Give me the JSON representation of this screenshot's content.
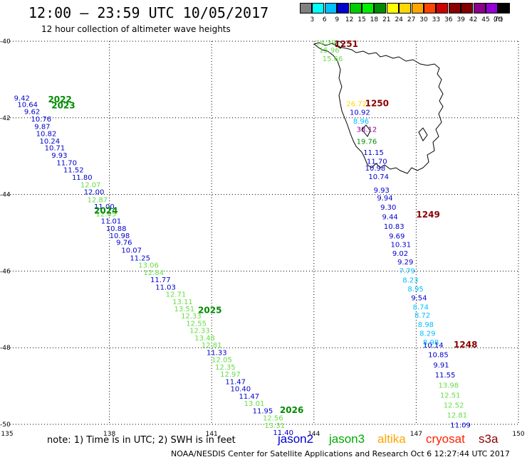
{
  "title": "12:00  —  23:59 UTC 10/05/2017",
  "subtitle": "12 hour collection of altimeter wave heights",
  "colorbar": {
    "colors": [
      "#808080",
      "#00ffff",
      "#00bfff",
      "#0000cd",
      "#00cd00",
      "#00ee00",
      "#008b00",
      "#ffff00",
      "#ffd700",
      "#ffa500",
      "#ff4500",
      "#cd0000",
      "#8b0000",
      "#800000",
      "#8b008b",
      "#9400d3",
      "#000000"
    ],
    "labels": [
      "3",
      "6",
      "9",
      "12",
      "15",
      "18",
      "21",
      "24",
      "27",
      "30",
      "33",
      "36",
      "39",
      "42",
      "45",
      "70"
    ],
    "unit": "(ft)"
  },
  "chart_data": {
    "type": "scatter",
    "xlim": [
      135,
      150
    ],
    "ylim": [
      -50,
      -40
    ],
    "x_ticks": [
      "135",
      "138",
      "141",
      "144",
      "147",
      "150"
    ],
    "y_ticks": [
      "-40",
      "-42",
      "-44",
      "-46",
      "-48",
      "-50"
    ],
    "grid": true,
    "pass_labels": [
      {
        "text": "2022",
        "lon": 136.2,
        "lat": -41.6,
        "color": "#008b00"
      },
      {
        "text": "2023",
        "lon": 136.3,
        "lat": -41.75,
        "color": "#008b00"
      },
      {
        "text": "2024",
        "lon": 137.55,
        "lat": -44.5,
        "color": "#008b00"
      },
      {
        "text": "2025",
        "lon": 140.6,
        "lat": -47.1,
        "color": "#008b00"
      },
      {
        "text": "2026",
        "lon": 143.0,
        "lat": -49.7,
        "color": "#008b00"
      },
      {
        "text": "1251",
        "lon": 144.6,
        "lat": -40.15,
        "color": "#8b0000"
      },
      {
        "text": "1250",
        "lon": 145.5,
        "lat": -41.7,
        "color": "#8b0000"
      },
      {
        "text": "1249",
        "lon": 147.0,
        "lat": -44.6,
        "color": "#8b0000"
      },
      {
        "text": "1248",
        "lon": 148.1,
        "lat": -48.0,
        "color": "#8b0000"
      }
    ],
    "observations": [
      {
        "v": "9.42",
        "lon": 135.2,
        "lat": -41.55,
        "color": "#0000cd"
      },
      {
        "v": "10.64",
        "lon": 135.3,
        "lat": -41.72,
        "color": "#0000cd"
      },
      {
        "v": "9.62",
        "lon": 135.5,
        "lat": -41.9,
        "color": "#0000cd"
      },
      {
        "v": "10.76",
        "lon": 135.7,
        "lat": -42.1,
        "color": "#0000cd"
      },
      {
        "v": "9.87",
        "lon": 135.8,
        "lat": -42.29,
        "color": "#0000cd"
      },
      {
        "v": "10.82",
        "lon": 135.85,
        "lat": -42.48,
        "color": "#0000cd"
      },
      {
        "v": "10.24",
        "lon": 135.95,
        "lat": -42.67,
        "color": "#0000cd"
      },
      {
        "v": "10.71",
        "lon": 136.1,
        "lat": -42.85,
        "color": "#0000cd"
      },
      {
        "v": "9.93",
        "lon": 136.3,
        "lat": -43.04,
        "color": "#0000cd"
      },
      {
        "v": "11.70",
        "lon": 136.45,
        "lat": -43.24,
        "color": "#0000cd"
      },
      {
        "v": "11.52",
        "lon": 136.65,
        "lat": -43.42,
        "color": "#0000cd"
      },
      {
        "v": "11.80",
        "lon": 136.9,
        "lat": -43.62,
        "color": "#0000cd"
      },
      {
        "v": "12.07",
        "lon": 137.15,
        "lat": -43.81,
        "color": "#66dd44"
      },
      {
        "v": "12.00",
        "lon": 137.25,
        "lat": -44.0,
        "color": "#0000cd"
      },
      {
        "v": "12.87",
        "lon": 137.35,
        "lat": -44.2,
        "color": "#66dd44"
      },
      {
        "v": "11.00",
        "lon": 137.55,
        "lat": -44.38,
        "color": "#0000cd"
      },
      {
        "v": "12.05",
        "lon": 137.6,
        "lat": -44.57,
        "color": "#66dd44"
      },
      {
        "v": "11.01",
        "lon": 137.75,
        "lat": -44.76,
        "color": "#0000cd"
      },
      {
        "v": "10.88",
        "lon": 137.9,
        "lat": -44.95,
        "color": "#0000cd"
      },
      {
        "v": "10.98",
        "lon": 138.0,
        "lat": -45.14,
        "color": "#0000cd"
      },
      {
        "v": "9.76",
        "lon": 138.2,
        "lat": -45.32,
        "color": "#0000cd"
      },
      {
        "v": "10.07",
        "lon": 138.35,
        "lat": -45.52,
        "color": "#0000cd"
      },
      {
        "v": "11.25",
        "lon": 138.6,
        "lat": -45.72,
        "color": "#0000cd"
      },
      {
        "v": "13.06",
        "lon": 138.85,
        "lat": -45.91,
        "color": "#66dd44"
      },
      {
        "v": "12.84",
        "lon": 139.0,
        "lat": -46.1,
        "color": "#66dd44"
      },
      {
        "v": "11.77",
        "lon": 139.2,
        "lat": -46.29,
        "color": "#0000cd"
      },
      {
        "v": "11.03",
        "lon": 139.35,
        "lat": -46.48,
        "color": "#0000cd"
      },
      {
        "v": "12.71",
        "lon": 139.65,
        "lat": -46.67,
        "color": "#66dd44"
      },
      {
        "v": "13.11",
        "lon": 139.85,
        "lat": -46.86,
        "color": "#66dd44"
      },
      {
        "v": "13.51",
        "lon": 139.9,
        "lat": -47.05,
        "color": "#66dd44"
      },
      {
        "v": "12.33",
        "lon": 140.1,
        "lat": -47.24,
        "color": "#66dd44"
      },
      {
        "v": "12.55",
        "lon": 140.25,
        "lat": -47.43,
        "color": "#66dd44"
      },
      {
        "v": "12.33",
        "lon": 140.35,
        "lat": -47.62,
        "color": "#66dd44"
      },
      {
        "v": "13.48",
        "lon": 140.5,
        "lat": -47.81,
        "color": "#66dd44"
      },
      {
        "v": "12.81",
        "lon": 140.7,
        "lat": -48.0,
        "color": "#66dd44"
      },
      {
        "v": "11.33",
        "lon": 140.85,
        "lat": -48.19,
        "color": "#0000cd"
      },
      {
        "v": "12.05",
        "lon": 141.0,
        "lat": -48.38,
        "color": "#66dd44"
      },
      {
        "v": "12.35",
        "lon": 141.1,
        "lat": -48.57,
        "color": "#66dd44"
      },
      {
        "v": "12.97",
        "lon": 141.25,
        "lat": -48.76,
        "color": "#66dd44"
      },
      {
        "v": "11.47",
        "lon": 141.4,
        "lat": -48.95,
        "color": "#0000cd"
      },
      {
        "v": "10.40",
        "lon": 141.55,
        "lat": -49.14,
        "color": "#0000cd"
      },
      {
        "v": "11.47",
        "lon": 141.8,
        "lat": -49.33,
        "color": "#0000cd"
      },
      {
        "v": "13.01",
        "lon": 141.95,
        "lat": -49.52,
        "color": "#66dd44"
      },
      {
        "v": "11.95",
        "lon": 142.2,
        "lat": -49.71,
        "color": "#0000cd"
      },
      {
        "v": "12.56",
        "lon": 142.5,
        "lat": -49.9,
        "color": "#66dd44"
      },
      {
        "v": "13.31",
        "lon": 142.55,
        "lat": -50.09,
        "color": "#66dd44"
      },
      {
        "v": "11.40",
        "lon": 142.8,
        "lat": -50.28,
        "color": "#0000cd"
      },
      {
        "v": "14.39",
        "lon": 144.05,
        "lat": -40.1,
        "color": "#66dd44"
      },
      {
        "v": "15.96",
        "lon": 144.15,
        "lat": -40.3,
        "color": "#66dd44"
      },
      {
        "v": "15.66",
        "lon": 144.25,
        "lat": -40.52,
        "color": "#66dd44"
      },
      {
        "v": "26.72",
        "lon": 144.95,
        "lat": -41.7,
        "color": "#ffd700"
      },
      {
        "v": "10.92",
        "lon": 145.05,
        "lat": -41.92,
        "color": "#0000cd"
      },
      {
        "v": "8.96",
        "lon": 145.15,
        "lat": -42.15,
        "color": "#00bfff"
      },
      {
        "v": "38.12",
        "lon": 145.25,
        "lat": -42.37,
        "color": "#8b008b"
      },
      {
        "v": "19.76",
        "lon": 145.25,
        "lat": -42.68,
        "color": "#008b00"
      },
      {
        "v": "11.15",
        "lon": 145.45,
        "lat": -42.97,
        "color": "#0000cd"
      },
      {
        "v": "11.70",
        "lon": 145.55,
        "lat": -43.2,
        "color": "#0000cd"
      },
      {
        "v": "10.98",
        "lon": 145.5,
        "lat": -43.38,
        "color": "#0000cd"
      },
      {
        "v": "10.74",
        "lon": 145.6,
        "lat": -43.6,
        "color": "#0000cd"
      },
      {
        "v": "9.93",
        "lon": 145.75,
        "lat": -43.95,
        "color": "#0000cd"
      },
      {
        "v": "9.94",
        "lon": 145.85,
        "lat": -44.16,
        "color": "#0000cd"
      },
      {
        "v": "9.30",
        "lon": 145.95,
        "lat": -44.4,
        "color": "#0000cd"
      },
      {
        "v": "9.44",
        "lon": 146.0,
        "lat": -44.65,
        "color": "#0000cd"
      },
      {
        "v": "10.83",
        "lon": 146.05,
        "lat": -44.9,
        "color": "#0000cd"
      },
      {
        "v": "9.69",
        "lon": 146.2,
        "lat": -45.15,
        "color": "#0000cd"
      },
      {
        "v": "10.31",
        "lon": 146.25,
        "lat": -45.37,
        "color": "#0000cd"
      },
      {
        "v": "9.02",
        "lon": 146.3,
        "lat": -45.6,
        "color": "#0000cd"
      },
      {
        "v": "9.29",
        "lon": 146.45,
        "lat": -45.83,
        "color": "#0000cd"
      },
      {
        "v": "7.79",
        "lon": 146.5,
        "lat": -46.06,
        "color": "#00bfff"
      },
      {
        "v": "8.23",
        "lon": 146.6,
        "lat": -46.3,
        "color": "#00bfff"
      },
      {
        "v": "8.95",
        "lon": 146.75,
        "lat": -46.53,
        "color": "#00bfff"
      },
      {
        "v": "9.54",
        "lon": 146.85,
        "lat": -46.76,
        "color": "#0000cd"
      },
      {
        "v": "8.74",
        "lon": 146.9,
        "lat": -47.0,
        "color": "#00bfff"
      },
      {
        "v": "8.72",
        "lon": 146.95,
        "lat": -47.22,
        "color": "#00bfff"
      },
      {
        "v": "8.98",
        "lon": 147.05,
        "lat": -47.46,
        "color": "#00bfff"
      },
      {
        "v": "8.29",
        "lon": 147.1,
        "lat": -47.69,
        "color": "#00bfff"
      },
      {
        "v": "8.98",
        "lon": 147.2,
        "lat": -47.92,
        "color": "#00bfff"
      },
      {
        "v": "10.14",
        "lon": 147.2,
        "lat": -48.0,
        "color": "#0000cd"
      },
      {
        "v": "10.85",
        "lon": 147.35,
        "lat": -48.25,
        "color": "#0000cd"
      },
      {
        "v": "9.91",
        "lon": 147.5,
        "lat": -48.52,
        "color": "#0000cd"
      },
      {
        "v": "11.55",
        "lon": 147.55,
        "lat": -48.78,
        "color": "#0000cd"
      },
      {
        "v": "13.98",
        "lon": 147.65,
        "lat": -49.04,
        "color": "#66dd44"
      },
      {
        "v": "12.51",
        "lon": 147.7,
        "lat": -49.3,
        "color": "#66dd44"
      },
      {
        "v": "12.52",
        "lon": 147.8,
        "lat": -49.56,
        "color": "#66dd44"
      },
      {
        "v": "12.81",
        "lon": 147.9,
        "lat": -49.82,
        "color": "#66dd44"
      },
      {
        "v": "11.09",
        "lon": 148.0,
        "lat": -50.08,
        "color": "#0000cd"
      }
    ]
  },
  "footer": {
    "note": "note:  1) Time is in UTC;  2) SWH is in feet",
    "legend": [
      {
        "name": "jason2",
        "color": "#0000cd"
      },
      {
        "name": "jason3",
        "color": "#00aa00"
      },
      {
        "name": "altika",
        "color": "#ffa500"
      },
      {
        "name": "cryosat",
        "color": "#ff2200"
      },
      {
        "name": "s3a",
        "color": "#8b0000"
      }
    ],
    "credit": "NOAA/NESDIS Center for Satellite Applications and Research    Oct  6 12:27:44 UTC 2017"
  }
}
